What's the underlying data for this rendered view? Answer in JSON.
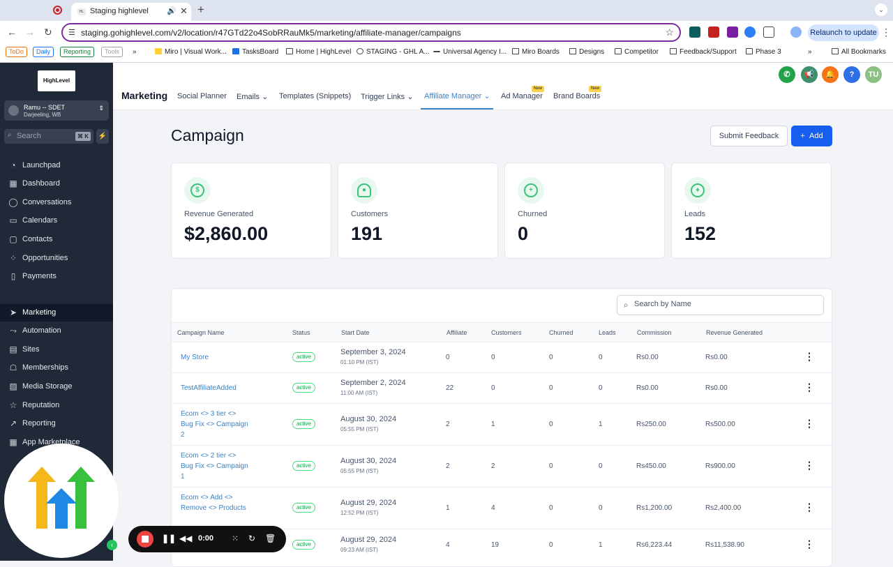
{
  "browser": {
    "tab_title": "Staging highlevel",
    "tab_favicon_text": "HL",
    "url": "staging.gohighlevel.com/v2/location/r47GTd22o4SobRRauMk5/marketing/affiliate-manager/campaigns",
    "relaunch_label": "Relaunch to update",
    "bookmark_tags": [
      {
        "label": "ToDo",
        "color": "#e8710a"
      },
      {
        "label": "Daily",
        "color": "#1a73e8"
      },
      {
        "label": "Reporting",
        "color": "#188038"
      },
      {
        "label": "Tools",
        "color": "#9aa0a6"
      }
    ],
    "bookmarks": [
      "Miro | Visual Work...",
      "TasksBoard",
      "Home | HighLevel",
      "STAGING - GHL A...",
      "Universal Agency I...",
      "Miro Boards",
      "Designs",
      "Competitor",
      "Feedback/Support",
      "Phase 3"
    ],
    "all_bookmarks": "All Bookmarks"
  },
  "sidebar": {
    "logo_text": "HighLevel",
    "account_name": "Ramu -- SDET",
    "account_location": "Darjeeling, WB",
    "search_placeholder": "Search",
    "search_shortcut": "⌘ K",
    "items": [
      {
        "label": "Launchpad",
        "icon": "launchpad-icon"
      },
      {
        "label": "Dashboard",
        "icon": "dashboard-icon"
      },
      {
        "label": "Conversations",
        "icon": "conversations-icon"
      },
      {
        "label": "Calendars",
        "icon": "calendar-icon"
      },
      {
        "label": "Contacts",
        "icon": "contacts-icon"
      },
      {
        "label": "Opportunities",
        "icon": "opportunities-icon"
      },
      {
        "label": "Payments",
        "icon": "payments-icon"
      },
      {
        "label": "Marketing",
        "icon": "marketing-icon"
      },
      {
        "label": "Automation",
        "icon": "automation-icon"
      },
      {
        "label": "Sites",
        "icon": "sites-icon"
      },
      {
        "label": "Memberships",
        "icon": "memberships-icon"
      },
      {
        "label": "Media Storage",
        "icon": "media-storage-icon"
      },
      {
        "label": "Reputation",
        "icon": "reputation-icon"
      },
      {
        "label": "Reporting",
        "icon": "reporting-icon"
      },
      {
        "label": "App Marketplace",
        "icon": "app-marketplace-icon"
      }
    ]
  },
  "header": {
    "module_title": "Marketing",
    "avatar_initials": "TU",
    "tabs": [
      {
        "label": "Social Planner"
      },
      {
        "label": "Emails"
      },
      {
        "label": "Templates (Snippets)"
      },
      {
        "label": "Trigger Links"
      },
      {
        "label": "Affiliate Manager"
      },
      {
        "label": "Ad Manager",
        "badge": "New"
      },
      {
        "label": "Brand Boards",
        "badge": "New"
      }
    ]
  },
  "page": {
    "title": "Campaign",
    "feedback_label": "Submit Feedback",
    "add_label": "Add"
  },
  "stats": [
    {
      "label": "Revenue Generated",
      "value": "$2,860.00",
      "icon": "dollar-icon"
    },
    {
      "label": "Customers",
      "value": "191",
      "icon": "user-icon"
    },
    {
      "label": "Churned",
      "value": "0",
      "icon": "user-plus-icon"
    },
    {
      "label": "Leads",
      "value": "152",
      "icon": "lead-icon"
    }
  ],
  "table": {
    "search_placeholder": "Search by Name",
    "columns": [
      "Campaign Name",
      "Status",
      "Start Date",
      "Affiliate",
      "Customers",
      "Churned",
      "Leads",
      "Commission",
      "Revenue Generated"
    ],
    "rows": [
      {
        "name": "My Store",
        "status": "active",
        "date": "September 3, 2024",
        "time": "01:10 PM (IST)",
        "affiliate": "0",
        "customers": "0",
        "churned": "0",
        "leads": "0",
        "commission": "Rs0.00",
        "revenue": "Rs0.00"
      },
      {
        "name": "TestAffiliateAdded",
        "status": "active",
        "date": "September 2, 2024",
        "time": "11:00 AM (IST)",
        "affiliate": "22",
        "customers": "0",
        "churned": "0",
        "leads": "0",
        "commission": "Rs0.00",
        "revenue": "Rs0.00"
      },
      {
        "name": "Ecom <> 3 tier <> Bug Fix <> Campaign 2",
        "status": "active",
        "date": "August 30, 2024",
        "time": "05:55 PM (IST)",
        "affiliate": "2",
        "customers": "1",
        "churned": "0",
        "leads": "1",
        "commission": "Rs250.00",
        "revenue": "Rs500.00"
      },
      {
        "name": "Ecom <> 2 tier <> Bug Fix <> Campaign 1",
        "status": "active",
        "date": "August 30, 2024",
        "time": "05:55 PM (IST)",
        "affiliate": "2",
        "customers": "2",
        "churned": "0",
        "leads": "0",
        "commission": "Rs450.00",
        "revenue": "Rs900.00"
      },
      {
        "name": "Ecom <> Add <> Remove <> Products",
        "status": "active",
        "date": "August 29, 2024",
        "time": "12:52 PM (IST)",
        "affiliate": "1",
        "customers": "4",
        "churned": "0",
        "leads": "0",
        "commission": "Rs1,200.00",
        "revenue": "Rs2,400.00"
      },
      {
        "name": "",
        "status": "active",
        "date": "August 29, 2024",
        "time": "09:23 AM (IST)",
        "affiliate": "4",
        "customers": "19",
        "churned": "0",
        "leads": "1",
        "commission": "Rs6,223.44",
        "revenue": "Rs11,538.90"
      }
    ]
  },
  "recorder": {
    "time": "0:00"
  }
}
